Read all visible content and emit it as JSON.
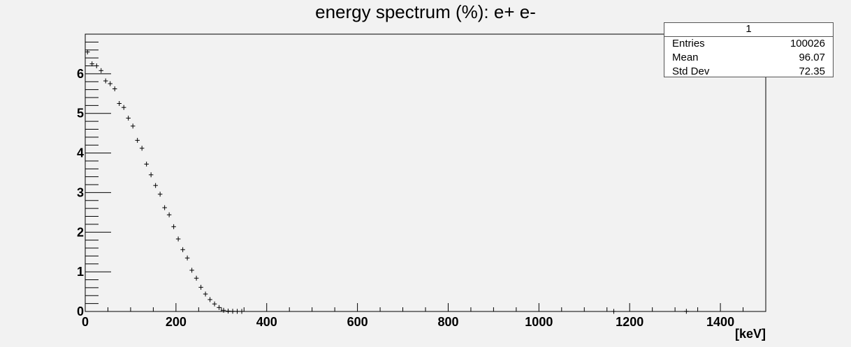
{
  "chart_data": {
    "type": "scatter",
    "title": "energy spectrum (%): e+ e-",
    "xlabel": "[keV]",
    "ylabel": "",
    "xlim": [
      0,
      1500
    ],
    "ylim": [
      0,
      7
    ],
    "xticks": [
      0,
      200,
      400,
      600,
      800,
      1000,
      1200,
      1400
    ],
    "yticks": [
      0,
      1,
      2,
      3,
      4,
      5,
      6
    ],
    "bin_width": 10,
    "x": [
      5,
      15,
      25,
      35,
      45,
      55,
      65,
      75,
      85,
      95,
      105,
      115,
      125,
      135,
      145,
      155,
      165,
      175,
      185,
      195,
      205,
      215,
      225,
      235,
      245,
      255,
      265,
      275,
      285,
      295,
      305,
      315,
      325,
      335,
      345,
      1165,
      1325
    ],
    "y": [
      6.55,
      6.25,
      6.2,
      6.08,
      5.82,
      5.75,
      5.62,
      5.25,
      5.15,
      4.88,
      4.68,
      4.32,
      4.12,
      3.72,
      3.45,
      3.18,
      2.96,
      2.62,
      2.44,
      2.14,
      1.83,
      1.56,
      1.35,
      1.04,
      0.84,
      0.61,
      0.44,
      0.3,
      0.19,
      0.1,
      0.03,
      0.01,
      0.005,
      0.003,
      0.002,
      0.002,
      0.004
    ],
    "marker_color": "#000000"
  },
  "stats": {
    "title": "1",
    "rows": [
      {
        "label": "Entries",
        "value": "100026"
      },
      {
        "label": "Mean",
        "value": "96.07"
      },
      {
        "label": "Std Dev",
        "value": "72.35"
      }
    ]
  }
}
